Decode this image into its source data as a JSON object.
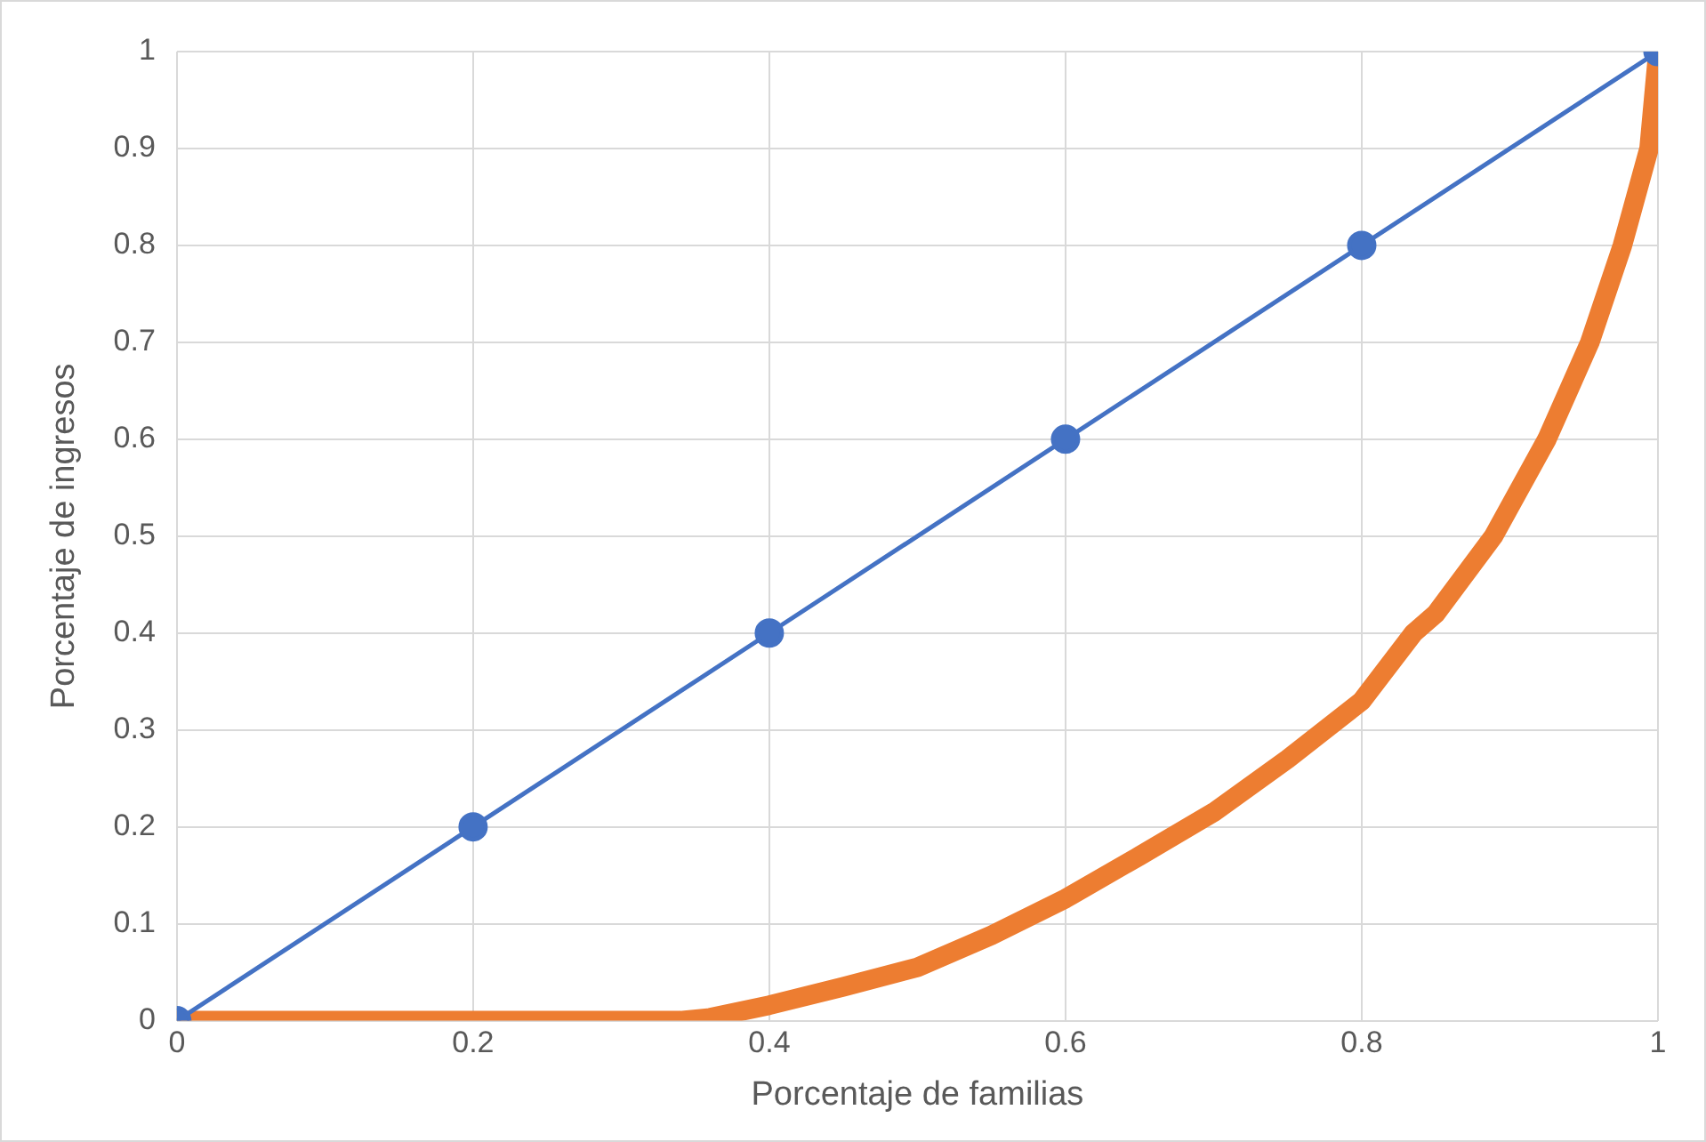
{
  "chart_data": {
    "type": "line",
    "xlabel": "Porcentaje de familias",
    "ylabel": "Porcentaje de ingresos",
    "xlim": [
      0,
      1
    ],
    "ylim": [
      0,
      1
    ],
    "xticks": [
      0,
      0.2,
      0.4,
      0.6,
      0.8,
      1
    ],
    "yticks": [
      0,
      0.1,
      0.2,
      0.3,
      0.4,
      0.5,
      0.6,
      0.7,
      0.8,
      0.9,
      1
    ],
    "grid": true,
    "legend": false,
    "series": [
      {
        "color": "#4472c4",
        "marker": "circle",
        "x": [
          0,
          0.2,
          0.4,
          0.6,
          0.8,
          1
        ],
        "values": [
          0,
          0.2,
          0.4,
          0.6,
          0.8,
          1
        ]
      },
      {
        "color": "#ed7d31",
        "marker": "none",
        "x": [
          0,
          0.1,
          0.2,
          0.3,
          0.34,
          0.36,
          0.4,
          0.45,
          0.5,
          0.55,
          0.6,
          0.65,
          0.7,
          0.75,
          0.8,
          0.835,
          0.85,
          0.889,
          0.925,
          0.954,
          0.976,
          0.994,
          0.997,
          1
        ],
        "values": [
          0,
          0,
          0,
          0,
          0,
          0.003,
          0.016,
          0.035,
          0.055,
          0.088,
          0.126,
          0.17,
          0.215,
          0.27,
          0.33,
          0.4,
          0.42,
          0.5,
          0.6,
          0.7,
          0.8,
          0.9,
          0.95,
          1
        ]
      }
    ]
  }
}
